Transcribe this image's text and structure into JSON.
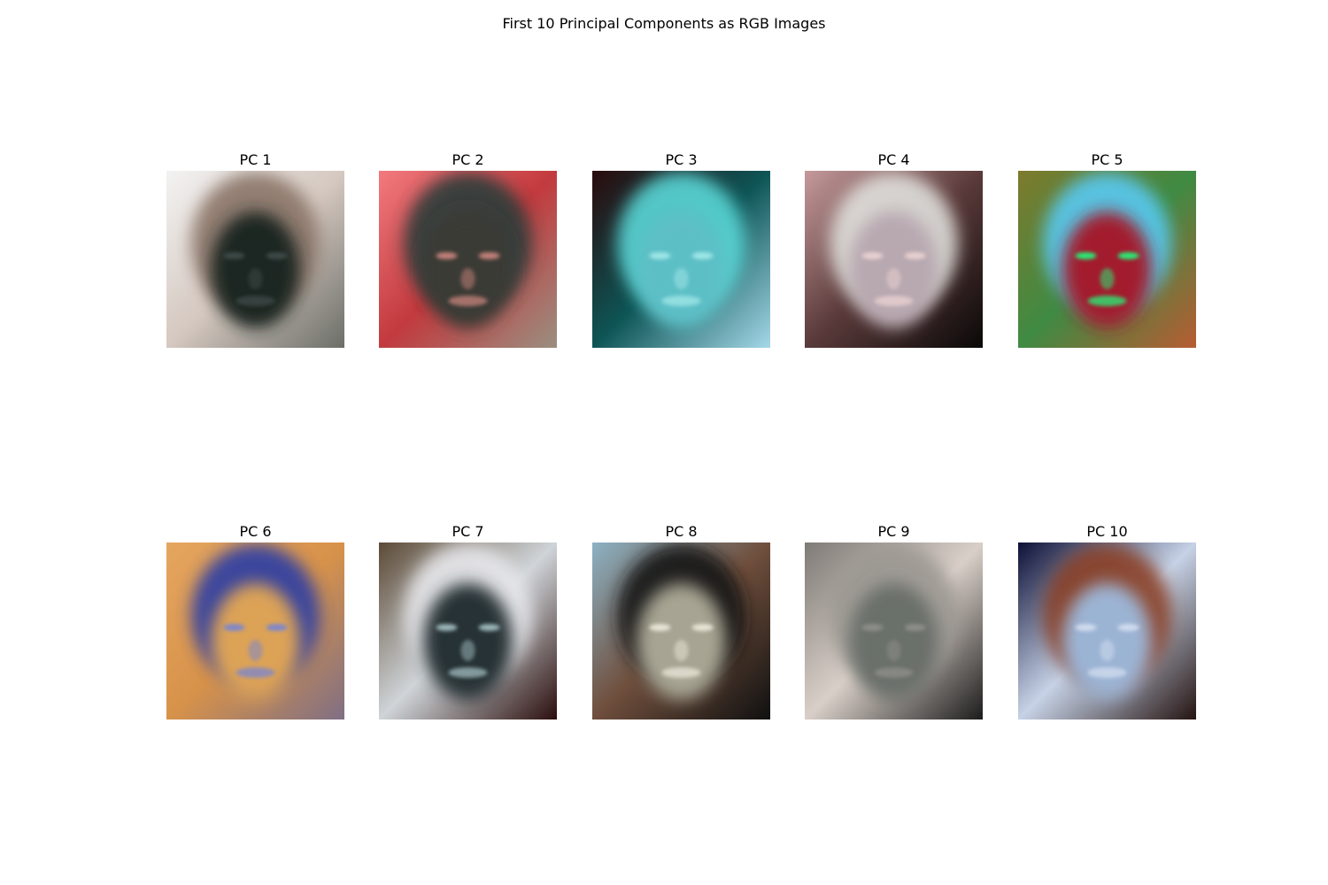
{
  "figure": {
    "title": "First 10 Principal Components as RGB Images"
  },
  "panels": [
    {
      "label": "PC 1",
      "bg": [
        "#f3f3f3",
        "#d5c8c0",
        "#6b6e68"
      ],
      "hair": "#8a7468",
      "face": "#1a2522",
      "feature": "#3e4a46"
    },
    {
      "label": "PC 2",
      "bg": [
        "#f27a7e",
        "#c23a3e",
        "#9a8f80"
      ],
      "hair": "#2b3d3a",
      "face": "#3b3a35",
      "feature": "#c07f78"
    },
    {
      "label": "PC 3",
      "bg": [
        "#2a0a0c",
        "#0e5556",
        "#a4d8e8"
      ],
      "hair": "#5ad6d6",
      "face": "#5dbfc6",
      "feature": "#9ee6e6"
    },
    {
      "label": "PC 4",
      "bg": [
        "#c59a9c",
        "#5a3a3a",
        "#0a0808"
      ],
      "hair": "#e0e0dc",
      "face": "#b8a8b0",
      "feature": "#e8d0d0"
    },
    {
      "label": "PC 5",
      "bg": [
        "#7e7a2c",
        "#3f8a43",
        "#b75c32"
      ],
      "hair": "#58c9f2",
      "face": "#a21a2e",
      "feature": "#2be874"
    },
    {
      "label": "PC 6",
      "bg": [
        "#e5a660",
        "#d7924a",
        "#7f6f84"
      ],
      "hair": "#2b3ca6",
      "face": "#dca257",
      "feature": "#7f87c9"
    },
    {
      "label": "PC 7",
      "bg": [
        "#5c4a36",
        "#cfd4d8",
        "#2a0e0c"
      ],
      "hair": "#e6e6ea",
      "face": "#253234",
      "feature": "#9ab4b6"
    },
    {
      "label": "PC 8",
      "bg": [
        "#8cb2c4",
        "#6f4e3c",
        "#101010"
      ],
      "hair": "#121212",
      "face": "#a7a493",
      "feature": "#e8e4d6"
    },
    {
      "label": "PC 9",
      "bg": [
        "#7e7a76",
        "#d9cfc8",
        "#1c1c1c"
      ],
      "hair": "#9c9893",
      "face": "#6a706a",
      "feature": "#8e8e88"
    },
    {
      "label": "PC 10",
      "bg": [
        "#0d1036",
        "#c6d2e6",
        "#251412"
      ],
      "hair": "#8a4026",
      "face": "#9cb4d4",
      "feature": "#d0dcee"
    }
  ]
}
